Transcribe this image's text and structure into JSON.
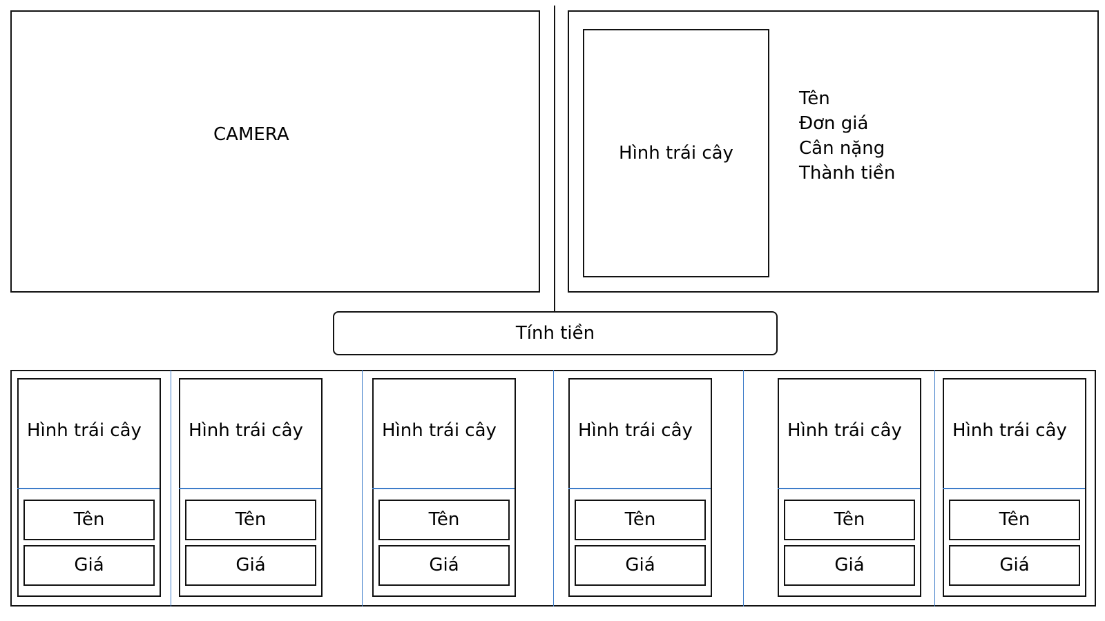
{
  "camera": {
    "label": "CAMERA"
  },
  "detail": {
    "image_label": "Hình trái cây",
    "fields": [
      "Tên",
      "Đơn giá",
      "Cân nặng",
      "Thành tiền"
    ]
  },
  "checkout": {
    "label": "Tính tiền"
  },
  "products": [
    {
      "image_label": "Hình trái cây",
      "name": "Tên",
      "price": "Giá"
    },
    {
      "image_label": "Hình trái cây",
      "name": "Tên",
      "price": "Giá"
    },
    {
      "image_label": "Hình trái cây",
      "name": "Tên",
      "price": "Giá"
    },
    {
      "image_label": "Hình trái cây",
      "name": "Tên",
      "price": "Giá"
    },
    {
      "image_label": "Hình trái cây",
      "name": "Tên",
      "price": "Giá"
    },
    {
      "image_label": "Hình trái cây",
      "name": "Tên",
      "price": "Giá"
    }
  ],
  "colors": {
    "border": "#111111",
    "accent_line": "#3d7cc9"
  }
}
